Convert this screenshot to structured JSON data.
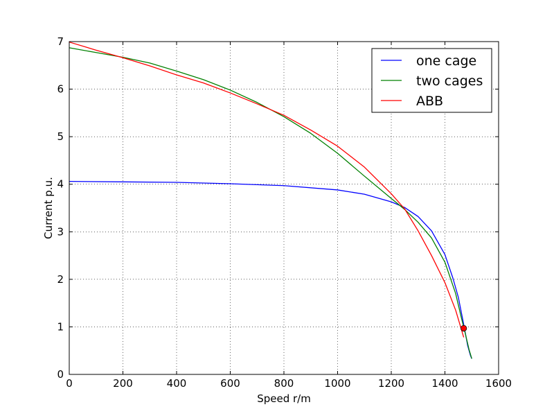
{
  "chart_data": {
    "type": "line",
    "title": "",
    "xlabel": "Speed r/m",
    "ylabel": "Current p.u.",
    "xlim": [
      0,
      1600
    ],
    "ylim": [
      0,
      7
    ],
    "xticks": [
      0,
      200,
      400,
      600,
      800,
      1000,
      1200,
      1400,
      1600
    ],
    "yticks": [
      0,
      1,
      2,
      3,
      4,
      5,
      6,
      7
    ],
    "grid": true,
    "legend_position": "top-right",
    "series": [
      {
        "name": "one cage",
        "color": "#0000ff",
        "x": [
          0,
          200,
          400,
          600,
          800,
          1000,
          1100,
          1200,
          1250,
          1300,
          1350,
          1400,
          1430,
          1450,
          1470,
          1485,
          1495,
          1500
        ],
        "y": [
          4.06,
          4.05,
          4.04,
          4.01,
          3.97,
          3.88,
          3.79,
          3.63,
          3.51,
          3.32,
          3.02,
          2.52,
          2.02,
          1.62,
          1.05,
          0.6,
          0.4,
          0.33
        ]
      },
      {
        "name": "two cages",
        "color": "#008000",
        "x": [
          0,
          100,
          200,
          300,
          400,
          500,
          600,
          700,
          800,
          900,
          1000,
          1100,
          1200,
          1250,
          1300,
          1350,
          1400,
          1440,
          1460,
          1475,
          1490,
          1500
        ],
        "y": [
          6.87,
          6.77,
          6.67,
          6.55,
          6.38,
          6.2,
          5.98,
          5.72,
          5.42,
          5.07,
          4.65,
          4.17,
          3.7,
          3.47,
          3.2,
          2.87,
          2.36,
          1.7,
          1.22,
          0.88,
          0.52,
          0.33
        ]
      },
      {
        "name": "ABB",
        "color": "#ff0000",
        "x": [
          0,
          100,
          200,
          300,
          400,
          500,
          600,
          700,
          800,
          900,
          1000,
          1100,
          1200,
          1250,
          1300,
          1350,
          1400,
          1440,
          1470
        ],
        "y": [
          6.99,
          6.82,
          6.66,
          6.49,
          6.3,
          6.13,
          5.92,
          5.69,
          5.45,
          5.14,
          4.8,
          4.36,
          3.8,
          3.48,
          3.02,
          2.5,
          1.93,
          1.35,
          0.78
        ]
      }
    ],
    "markers": [
      {
        "x": 1470,
        "y": 0.97,
        "color": "#ff0000"
      }
    ]
  }
}
